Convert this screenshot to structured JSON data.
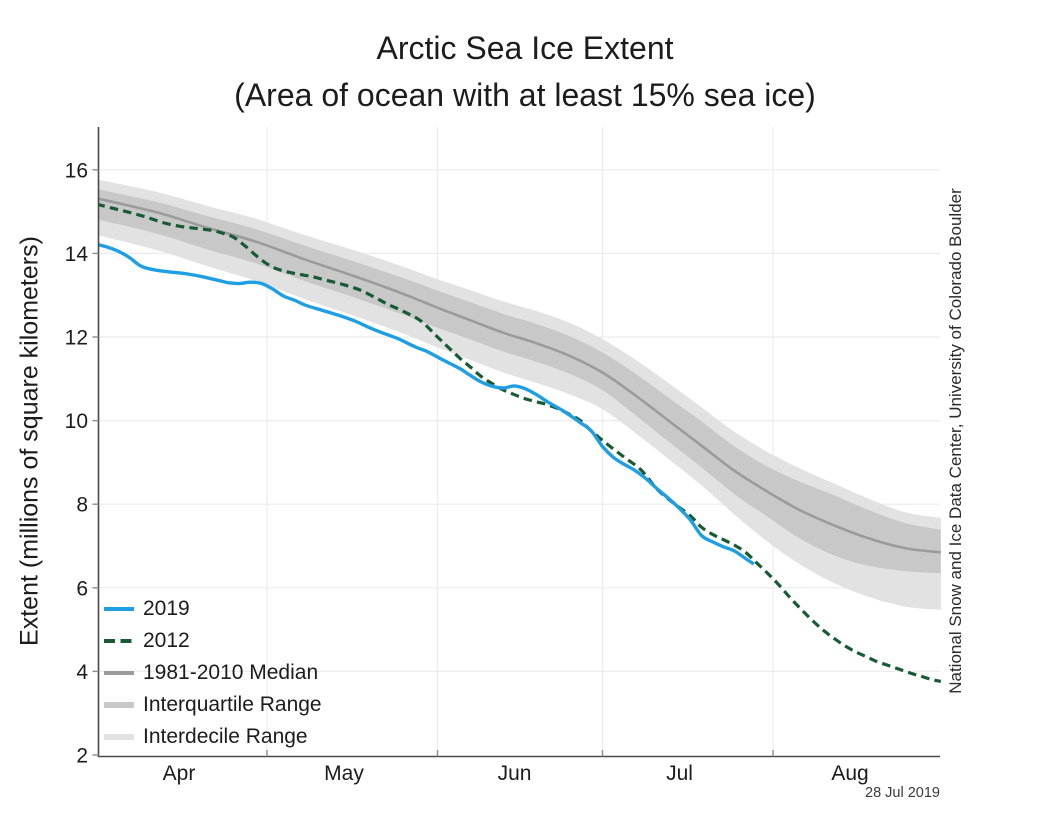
{
  "title": "Arctic Sea Ice Extent",
  "subtitle": "(Area of ocean with at least 15% sea ice)",
  "ylabel": "Extent (millions of square kilometers)",
  "credit": "National Snow and Ice Data Center, University of Colorado Boulder",
  "date_label": "28 Jul 2019",
  "colors": {
    "line_2019": "#1E9FE3",
    "line_2012": "#175B33",
    "median": "#9B9B9B",
    "iqr_band": "#C8C8C8",
    "idr_band": "#E2E2E2",
    "grid": "#ECECEC",
    "axis": "#4A4A4A",
    "tick": "#8C8C8C",
    "text": "#1C1C1C"
  },
  "legend": [
    {
      "label": "2019",
      "swatch": "solid-line",
      "color": "#1E9FE3"
    },
    {
      "label": "2012",
      "swatch": "dashed-line",
      "color": "#175B33"
    },
    {
      "label": "1981-2010 Median",
      "swatch": "solid-line",
      "color": "#9B9B9B"
    },
    {
      "label": "Interquartile Range",
      "swatch": "band",
      "color": "#C8C8C8"
    },
    {
      "label": "Interdecile Range",
      "swatch": "band",
      "color": "#E2E2E2"
    }
  ],
  "chart_data": {
    "type": "line",
    "x_unit": "day_of_year",
    "x_range": [
      90,
      243.5
    ],
    "ylim": [
      2,
      17
    ],
    "yticks": [
      2,
      4,
      6,
      8,
      10,
      12,
      14,
      16
    ],
    "month_boundaries": [
      121,
      152,
      182,
      213
    ],
    "month_label_days": [
      105,
      135,
      166,
      196,
      227
    ],
    "month_labels": [
      "Apr",
      "May",
      "Jun",
      "Jul",
      "Aug"
    ],
    "series": [
      {
        "name": "2019",
        "color": "#1E9FE3",
        "style": "solid",
        "width": 3.4,
        "x": [
          90,
          92,
          94,
          96,
          98,
          100,
          103,
          106,
          109,
          112,
          114,
          116,
          118,
          120,
          122,
          124,
          126,
          128,
          131,
          134,
          137,
          140,
          143,
          145,
          148,
          150,
          153,
          156,
          158,
          160,
          162,
          164,
          166,
          168,
          170,
          172,
          175,
          178,
          180,
          182,
          184,
          186,
          188,
          190,
          192,
          194,
          196,
          198,
          200,
          202,
          204,
          206,
          208,
          209.5
        ],
        "y": [
          14.22,
          14.15,
          14.05,
          13.9,
          13.7,
          13.62,
          13.56,
          13.52,
          13.45,
          13.36,
          13.3,
          13.28,
          13.31,
          13.28,
          13.15,
          12.98,
          12.88,
          12.76,
          12.64,
          12.52,
          12.38,
          12.2,
          12.05,
          11.95,
          11.76,
          11.66,
          11.45,
          11.25,
          11.08,
          10.92,
          10.82,
          10.78,
          10.83,
          10.76,
          10.62,
          10.45,
          10.22,
          9.95,
          9.75,
          9.38,
          9.12,
          8.95,
          8.8,
          8.6,
          8.36,
          8.14,
          7.9,
          7.62,
          7.25,
          7.1,
          6.98,
          6.88,
          6.7,
          6.57
        ]
      },
      {
        "name": "2012",
        "color": "#175B33",
        "style": "dashed",
        "width": 3.2,
        "x": [
          90,
          93,
          96,
          99,
          102,
          105,
          108,
          111,
          113,
          115,
          117,
          119,
          121,
          123,
          126,
          129,
          132,
          135,
          138,
          141,
          143,
          146,
          149,
          152,
          154,
          156,
          158,
          160,
          162,
          164,
          166,
          168,
          170,
          172,
          174,
          176,
          178,
          180,
          183,
          186,
          189,
          192,
          195,
          198,
          200,
          202,
          204,
          206,
          208,
          210,
          212,
          214,
          216,
          218,
          220,
          222,
          224,
          226,
          228,
          230,
          232,
          234,
          236,
          238,
          240,
          242,
          243.5
        ],
        "y": [
          15.18,
          15.08,
          14.98,
          14.87,
          14.74,
          14.65,
          14.6,
          14.55,
          14.48,
          14.38,
          14.18,
          13.95,
          13.75,
          13.62,
          13.52,
          13.45,
          13.35,
          13.25,
          13.12,
          12.92,
          12.78,
          12.6,
          12.38,
          12.0,
          11.75,
          11.5,
          11.28,
          11.05,
          10.88,
          10.73,
          10.62,
          10.52,
          10.45,
          10.38,
          10.28,
          10.15,
          10.0,
          9.75,
          9.42,
          9.12,
          8.82,
          8.35,
          8.02,
          7.72,
          7.45,
          7.28,
          7.15,
          7.02,
          6.85,
          6.6,
          6.35,
          6.08,
          5.78,
          5.5,
          5.24,
          5.0,
          4.8,
          4.62,
          4.47,
          4.35,
          4.23,
          4.14,
          4.05,
          3.96,
          3.88,
          3.8,
          3.76
        ]
      },
      {
        "name": "1981-2010 Median",
        "color": "#9B9B9B",
        "style": "solid",
        "width": 2.6,
        "x": [
          90,
          101,
          110,
          119,
          128,
          137,
          146,
          152,
          158,
          164,
          170,
          176,
          182,
          188,
          194,
          200,
          206,
          212,
          218,
          224,
          230,
          237,
          243.5
        ],
        "y": [
          15.32,
          14.98,
          14.62,
          14.28,
          13.85,
          13.45,
          13.02,
          12.7,
          12.4,
          12.1,
          11.85,
          11.55,
          11.15,
          10.6,
          10.0,
          9.4,
          8.8,
          8.3,
          7.85,
          7.5,
          7.2,
          6.95,
          6.85
        ]
      }
    ],
    "bands": [
      {
        "name": "Interdecile Range",
        "color": "#E2E2E2",
        "x": [
          90,
          101,
          110,
          119,
          128,
          137,
          146,
          152,
          158,
          164,
          170,
          176,
          182,
          188,
          194,
          200,
          206,
          212,
          218,
          224,
          230,
          237,
          243.5
        ],
        "hi": [
          15.77,
          15.47,
          15.14,
          14.83,
          14.43,
          14.07,
          13.67,
          13.38,
          13.12,
          12.85,
          12.62,
          12.34,
          11.95,
          11.46,
          10.9,
          10.32,
          9.73,
          9.25,
          8.85,
          8.5,
          8.15,
          7.81,
          7.67
        ],
        "lo": [
          14.44,
          14.08,
          13.7,
          13.34,
          12.9,
          12.5,
          12.07,
          11.75,
          11.45,
          11.15,
          10.9,
          10.63,
          10.27,
          9.7,
          9.08,
          8.45,
          7.75,
          7.1,
          6.55,
          6.12,
          5.8,
          5.55,
          5.47
        ]
      },
      {
        "name": "Interquartile Range",
        "color": "#C8C8C8",
        "x": [
          90,
          101,
          110,
          119,
          128,
          137,
          146,
          152,
          158,
          164,
          170,
          176,
          182,
          188,
          194,
          200,
          206,
          212,
          218,
          224,
          230,
          237,
          243.5
        ],
        "hi": [
          15.54,
          15.23,
          14.9,
          14.58,
          14.18,
          13.8,
          13.4,
          13.11,
          12.83,
          12.55,
          12.31,
          12.02,
          11.63,
          11.12,
          10.55,
          9.98,
          9.38,
          8.9,
          8.53,
          8.22,
          7.88,
          7.55,
          7.39
        ],
        "lo": [
          14.82,
          14.47,
          14.1,
          13.76,
          13.33,
          12.94,
          12.52,
          12.22,
          11.94,
          11.65,
          11.41,
          11.12,
          10.73,
          10.13,
          9.5,
          8.88,
          8.24,
          7.7,
          7.17,
          6.78,
          6.54,
          6.4,
          6.35
        ]
      }
    ]
  }
}
